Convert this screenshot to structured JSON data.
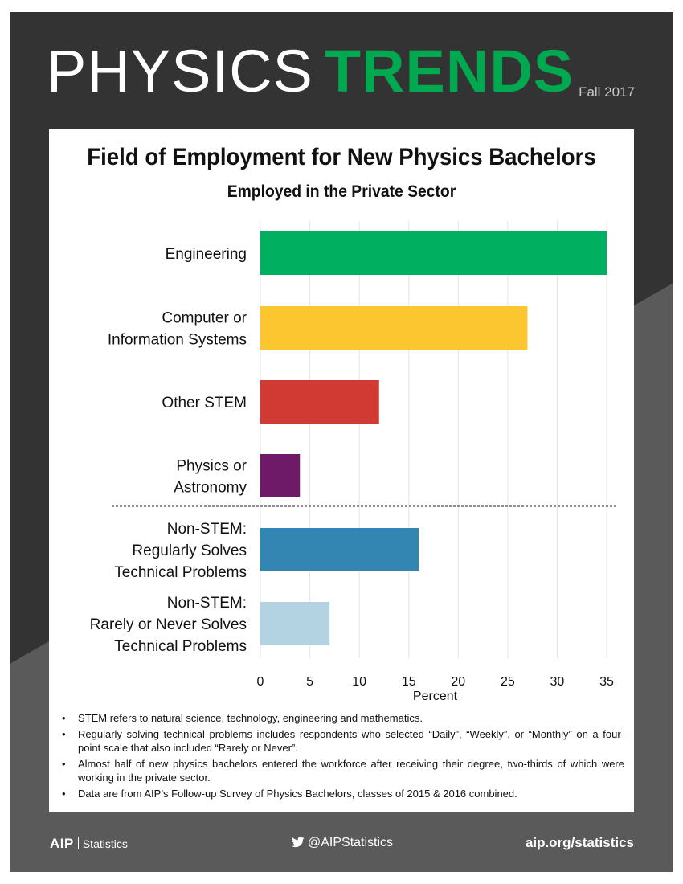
{
  "masthead": {
    "light": "PHYSICS",
    "bold": "TRENDS",
    "issue": "Fall 2017"
  },
  "colors": {
    "background_dark": "#333333",
    "background_mid": "#5a5a5a",
    "brand_green": "#00a850"
  },
  "chart_data": {
    "type": "bar",
    "orientation": "horizontal",
    "title": "Field of Employment for New Physics Bachelors",
    "subtitle": "Employed in the Private Sector",
    "xlabel": "Percent",
    "xlim": [
      0,
      35
    ],
    "xticks": [
      "0",
      "5",
      "10",
      "15",
      "20",
      "25",
      "30",
      "35"
    ],
    "grid": true,
    "categories": [
      {
        "lines": [
          "Engineering"
        ],
        "value": 35,
        "color": "#00b060"
      },
      {
        "lines": [
          "Computer or",
          "Information Systems"
        ],
        "value": 27,
        "color": "#fcc630"
      },
      {
        "lines": [
          "Other STEM"
        ],
        "value": 12,
        "color": "#d13a32"
      },
      {
        "lines": [
          "Physics or",
          "Astronomy"
        ],
        "value": 4,
        "color": "#6e1a68"
      },
      {
        "lines": [
          "Non-STEM:",
          "Regularly Solves",
          "Technical Problems"
        ],
        "value": 16,
        "color": "#3386b1"
      },
      {
        "lines": [
          "Non-STEM:",
          "Rarely or Never Solves",
          "Technical Problems"
        ],
        "value": 7,
        "color": "#b3d3e3"
      }
    ],
    "divider_after_index": 3
  },
  "notes": [
    "STEM refers to natural science, technology, engineering and mathematics.",
    "Regularly solving technical problems includes respondents who selected “Daily”, “Weekly”, or “Monthly” on a four-point scale that also included “Rarely or Never”.",
    "Almost half of new physics bachelors entered the workforce after receiving their degree, two-thirds of which were working in the private sector.",
    "Data are from AIP’s Follow-up Survey of Physics Bachelors, classes of 2015 & 2016 combined."
  ],
  "footer": {
    "brand": "AIP",
    "brand_sub": "Statistics",
    "twitter": "@AIPStatistics",
    "website": "aip.org/statistics"
  }
}
